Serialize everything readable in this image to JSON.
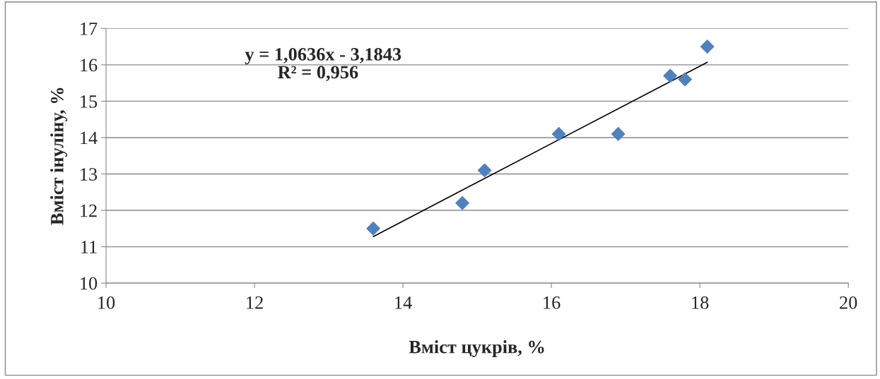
{
  "chart_data": {
    "type": "scatter",
    "xlabel": "Вміст цукрів, %",
    "ylabel": "Вміст інуліну, %",
    "annotations": [
      "y = 1,0636x - 3,1843",
      "R² = 0,956"
    ],
    "series": [
      {
        "color": "#4f81bd",
        "marker": "diamond",
        "x": [
          13.6,
          14.8,
          15.1,
          16.1,
          16.9,
          17.6,
          17.8,
          18.1
        ],
        "values": [
          11.5,
          12.2,
          13.1,
          14.1,
          14.1,
          15.7,
          15.6,
          16.5
        ]
      },
      {
        "type": "line",
        "color": "#000000",
        "marker": "none",
        "line_style": "solid",
        "x": [
          13.6,
          18.1
        ],
        "values": [
          11.28,
          16.07
        ]
      }
    ],
    "xlim": [
      10,
      20
    ],
    "xticks": [
      10,
      12,
      14,
      16,
      18,
      20
    ],
    "ylim": [
      10,
      17
    ],
    "yticks": [
      10,
      11,
      12,
      13,
      14,
      15,
      16,
      17
    ],
    "grid": "y"
  }
}
